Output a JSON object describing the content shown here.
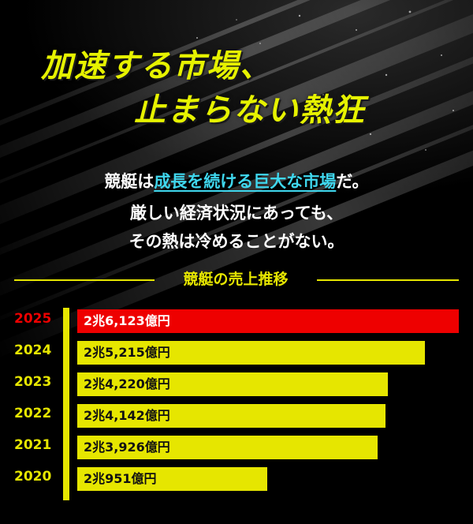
{
  "headline": {
    "line1": "加速する市場、",
    "line2": "止まらない熱狂"
  },
  "intro": {
    "line1_pre": "競艇は",
    "line1_highlight": "成長を続ける巨大な市場",
    "line1_post": "だ。",
    "line2": "厳しい経済状況にあっても、",
    "line3": "その熱は冷めることがない。"
  },
  "colors": {
    "accent_yellow": "#e6e600",
    "headline_yellow": "#e6f200",
    "highlight_red": "#ee0000",
    "link_cyan": "#3fd7ee"
  },
  "chart_data": {
    "type": "bar",
    "orientation": "horizontal",
    "title": "競艇の売上推移",
    "categories": [
      "2025",
      "2024",
      "2023",
      "2022",
      "2021",
      "2020"
    ],
    "values": [
      26123,
      25215,
      24220,
      24142,
      23926,
      20951
    ],
    "value_labels": [
      "2兆6,123億円",
      "2兆5,215億円",
      "2兆4,220億円",
      "2兆4,142億円",
      "2兆3,926億円",
      "2兆951億円"
    ],
    "unit": "億円",
    "highlight_category": "2025",
    "grid": false,
    "legend": "none"
  }
}
